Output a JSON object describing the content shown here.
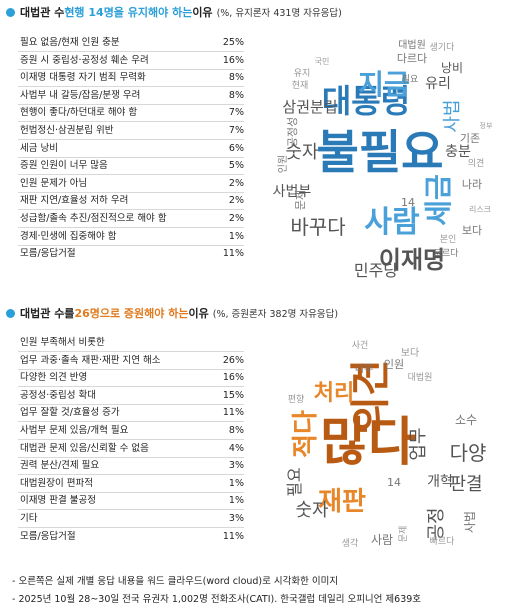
{
  "sections": [
    {
      "heading": {
        "prefix": "대법관 수 ",
        "highlight": "현행 14명을 유지해야 하는",
        "suffix": " 이유",
        "note": "(%, 유지론자 431명 자유응답)"
      },
      "accent": "#2a9fd8"
    },
    {
      "heading": {
        "prefix": "대법관 수를 ",
        "highlight": "26명으로 증원해야 하는",
        "suffix": " 이유",
        "note": "(%, 증원론자 382명 자유응답)"
      },
      "accent": "#e07b1f"
    }
  ],
  "chart_data": [
    {
      "type": "table",
      "title": "대법관 수 현행 14명을 유지해야 하는 이유",
      "categories": [
        "필요 없음/현재 인원 충분",
        "증원 시 중립성·공정성 훼손 우려",
        "이재명 대통령 자기 범죄 무력화",
        "사법부 내 갈등/잡음/분쟁 우려",
        "현행이 좋다/하던대로 해야 함",
        "헌법정신·삼권분립 위반",
        "세금 낭비",
        "증원 인원이 너무 많음",
        "인원 문제가 아님",
        "재판 지연/효율성 저하 우려",
        "성급함/졸속 추진/점진적으로 해야 함",
        "경제·민생에 집중해야 함",
        "모름/응답거절"
      ],
      "values": [
        "25%",
        "16%",
        "8%",
        "8%",
        "7%",
        "7%",
        "6%",
        "5%",
        "2%",
        "2%",
        "2%",
        "1%",
        "11%"
      ]
    },
    {
      "type": "table",
      "title": "대법관 수를 26명으로 증원해야 하는 이유",
      "categories": [
        "인원 부족해서 비롯한",
        "업무 과중·졸속 재판·재판 지연 해소",
        "다양한 의견 반영",
        "공정성·중립성 확대",
        "업무 잘할 것/효율성 증가",
        "사법부 문제 있음/개혁 필요",
        "대법관 문제 있음/신뢰할 수 없음",
        "권력 분산/견제 필요",
        "대법원장이 편파적",
        "이재명 판결 불공정",
        "기타",
        "모름/응답거절"
      ],
      "values": [
        "",
        "26%",
        "16%",
        "15%",
        "11%",
        "8%",
        "4%",
        "3%",
        "1%",
        "1%",
        "3%",
        "11%"
      ]
    }
  ],
  "clouds": [
    {
      "words": [
        {
          "t": "불필요",
          "c": "#2a7ab8"
        },
        {
          "t": "대통령",
          "c": "#2a7ab8"
        },
        {
          "t": "사람",
          "c": "#4aa0d8"
        },
        {
          "t": "세금",
          "c": "#4aa0d8"
        },
        {
          "t": "이재명",
          "c": "#555555"
        },
        {
          "t": "지금",
          "c": "#4aa0d8"
        },
        {
          "t": "바꾸다",
          "c": "#555555"
        },
        {
          "t": "숫자",
          "c": "#555555"
        },
        {
          "t": "삼권분립",
          "c": "#555555"
        },
        {
          "t": "사법",
          "c": "#4aa0d8"
        },
        {
          "t": "민주당",
          "c": "#555555"
        },
        {
          "t": "충분",
          "c": "#555555"
        },
        {
          "t": "유리",
          "c": "#555555"
        },
        {
          "t": "사법부",
          "c": "#555555"
        },
        {
          "t": "문제",
          "c": "#777777"
        },
        {
          "t": "낭비",
          "c": "#555555"
        },
        {
          "t": "14",
          "c": "#777777"
        },
        {
          "t": "나라",
          "c": "#777777"
        },
        {
          "t": "보다",
          "c": "#777777"
        },
        {
          "t": "기존",
          "c": "#777777"
        },
        {
          "t": "공정성",
          "c": "#777777"
        },
        {
          "t": "인원",
          "c": "#777777"
        },
        {
          "t": "다르다",
          "c": "#777777"
        },
        {
          "t": "대법원",
          "c": "#777777"
        },
        {
          "t": "모르다",
          "c": "#777777"
        },
        {
          "t": "필요",
          "c": "#777777"
        },
        {
          "t": "의견",
          "c": "#999999"
        },
        {
          "t": "본인",
          "c": "#999999"
        },
        {
          "t": "현재",
          "c": "#999999"
        },
        {
          "t": "유지",
          "c": "#999999"
        },
        {
          "t": "생기다",
          "c": "#999999"
        },
        {
          "t": "리스크",
          "c": "#999999"
        },
        {
          "t": "국민",
          "c": "#999999"
        },
        {
          "t": "정부",
          "c": "#999999"
        }
      ]
    },
    {
      "words": [
        {
          "t": "많다",
          "c": "#b85a12"
        },
        {
          "t": "의견",
          "c": "#b85a12"
        },
        {
          "t": "재판",
          "c": "#e8862a"
        },
        {
          "t": "적다",
          "c": "#e8862a"
        },
        {
          "t": "업무",
          "c": "#555555"
        },
        {
          "t": "다양",
          "c": "#555555"
        },
        {
          "t": "판결",
          "c": "#555555"
        },
        {
          "t": "공정",
          "c": "#555555"
        },
        {
          "t": "숫자",
          "c": "#555555"
        },
        {
          "t": "필요",
          "c": "#555555"
        },
        {
          "t": "처리",
          "c": "#e8862a"
        },
        {
          "t": "개혁",
          "c": "#555555"
        },
        {
          "t": "사람",
          "c": "#777777"
        },
        {
          "t": "소수",
          "c": "#777777"
        },
        {
          "t": "사법",
          "c": "#777777"
        },
        {
          "t": "인원",
          "c": "#777777"
        },
        {
          "t": "14",
          "c": "#777777"
        },
        {
          "t": "너무",
          "c": "#777777"
        },
        {
          "t": "빠르다",
          "c": "#999999"
        },
        {
          "t": "생각",
          "c": "#999999"
        },
        {
          "t": "보다",
          "c": "#999999"
        },
        {
          "t": "대법원",
          "c": "#999999"
        },
        {
          "t": "문제",
          "c": "#999999"
        },
        {
          "t": "사건",
          "c": "#999999"
        },
        {
          "t": "편향",
          "c": "#999999"
        }
      ]
    }
  ],
  "footer": [
    "- 오른쪽은 실제 개별 응답 내용을 워드 클라우드(word cloud)로 시각화한 이미지",
    "- 2025년 10월 28~30일 전국 유권자 1,002명 전화조사(CATI). 한국갤럽 데일리 오피니언 제639호"
  ]
}
